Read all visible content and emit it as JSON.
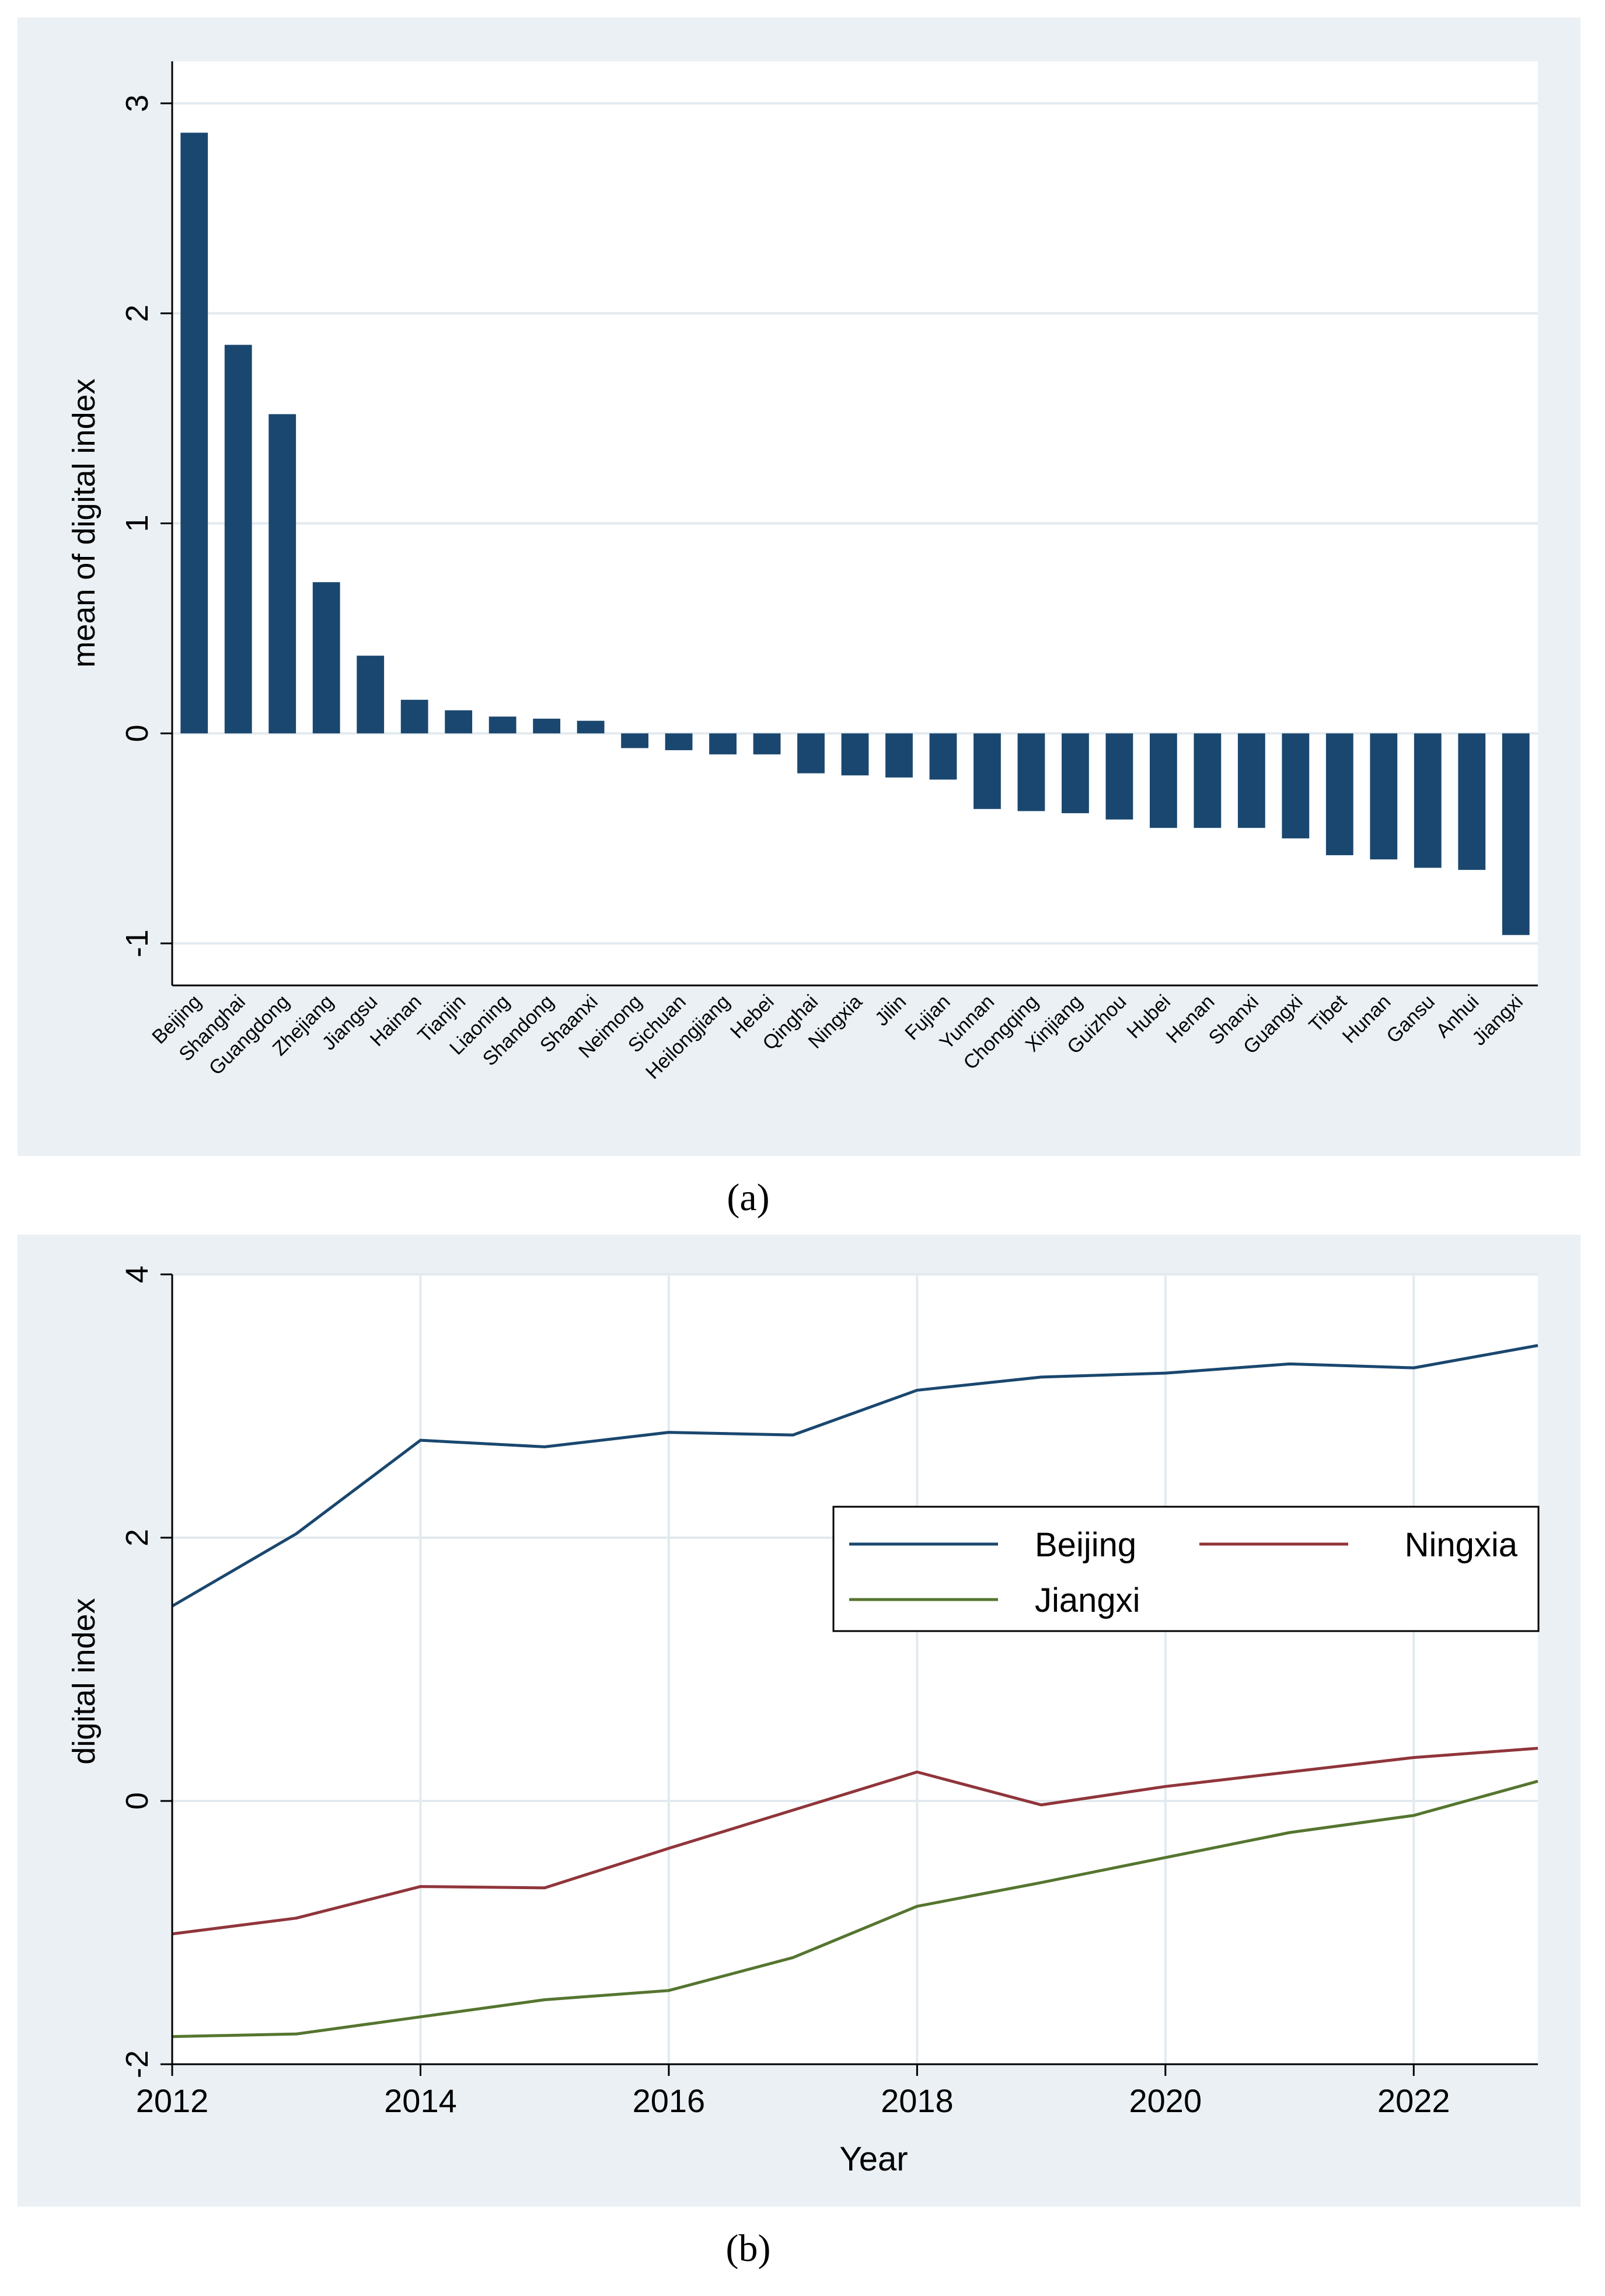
{
  "colors": {
    "panel_bg": "#EAF0F4",
    "plot_bg": "#FFFFFF",
    "grid": "#E2EAEF",
    "bar": "#1A476F",
    "beijing": "#1A476F",
    "ningxia": "#90353B",
    "jiangxi": "#55752F"
  },
  "chart_data": [
    {
      "type": "bar",
      "caption": "(a)",
      "xlabel": "",
      "ylabel": "mean of digital  index",
      "ylim": [
        -1.2,
        3.2
      ],
      "yticks": [
        -1,
        0,
        1,
        2,
        3
      ],
      "grid": true,
      "categories": [
        "Beijing",
        "Shanghai",
        "Guangdong",
        "Zhejiang",
        "Jiangsu",
        "Hainan",
        "Tianjin",
        "Liaoning",
        "Shandong",
        "Shaanxi",
        "Neimong",
        "Sichuan",
        "Heilongjiang",
        "Hebei",
        "Qinghai",
        "Ningxia",
        "Jilin",
        "Fujian",
        "Yunnan",
        "Chongqing",
        "Xinjiang",
        "Guizhou",
        "Hubei",
        "Henan",
        "Shanxi",
        "Guangxi",
        "Tibet",
        "Hunan",
        "Gansu",
        "Anhui",
        "Jiangxi"
      ],
      "values": [
        2.86,
        1.85,
        1.52,
        0.72,
        0.37,
        0.16,
        0.11,
        0.08,
        0.07,
        0.06,
        -0.07,
        -0.08,
        -0.1,
        -0.1,
        -0.19,
        -0.2,
        -0.21,
        -0.22,
        -0.36,
        -0.37,
        -0.38,
        -0.41,
        -0.45,
        -0.45,
        -0.45,
        -0.5,
        -0.58,
        -0.6,
        -0.64,
        -0.65,
        -0.96
      ]
    },
    {
      "type": "line",
      "caption": "(b)",
      "xlabel": "Year",
      "ylabel": "digital  index",
      "xlim": [
        2012,
        2023
      ],
      "ylim": [
        -2,
        4
      ],
      "xticks": [
        2012,
        2014,
        2016,
        2018,
        2020,
        2022
      ],
      "yticks": [
        -2,
        0,
        2,
        4
      ],
      "grid": true,
      "legend_placement": "center-right",
      "x": [
        2012,
        2013,
        2014,
        2015,
        2016,
        2017,
        2018,
        2019,
        2020,
        2021,
        2022,
        2023
      ],
      "series": [
        {
          "name": "Beijing",
          "values": [
            1.48,
            2.03,
            2.74,
            2.69,
            2.8,
            2.78,
            3.12,
            3.22,
            3.25,
            3.32,
            3.29,
            3.46
          ]
        },
        {
          "name": "Ningxia",
          "values": [
            -1.01,
            -0.89,
            -0.65,
            -0.66,
            -0.36,
            -0.07,
            0.22,
            -0.03,
            0.11,
            0.22,
            0.33,
            0.4
          ]
        },
        {
          "name": "Jiangxi",
          "values": [
            -1.79,
            -1.77,
            -1.64,
            -1.51,
            -1.44,
            -1.19,
            -0.8,
            -0.62,
            -0.43,
            -0.24,
            -0.11,
            0.15
          ]
        }
      ]
    }
  ]
}
